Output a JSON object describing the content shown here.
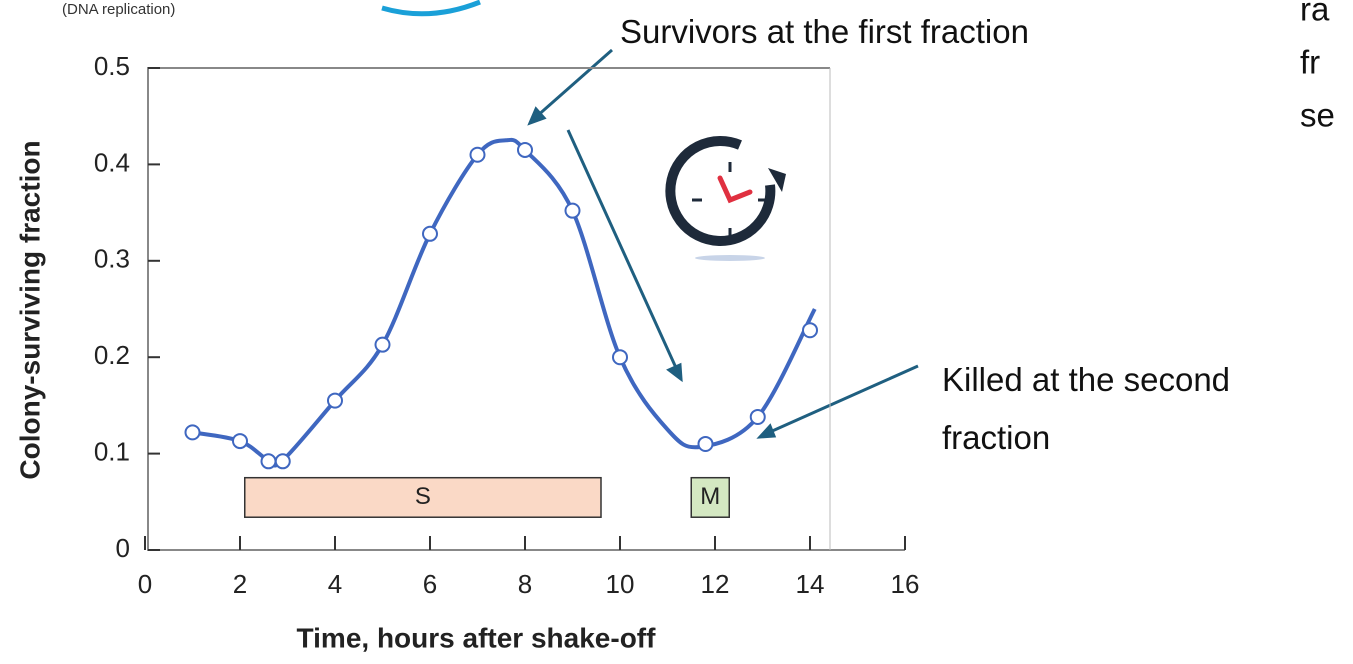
{
  "chart_data": {
    "type": "line",
    "xlabel": "Time, hours after shake-off",
    "ylabel": "Colony-surviving fraction",
    "xlim": [
      0,
      16
    ],
    "xticks": [
      0,
      2,
      4,
      6,
      8,
      10,
      12,
      14,
      16
    ],
    "ylim": [
      0,
      0.5
    ],
    "yticks": [
      0,
      0.1,
      0.2,
      0.3,
      0.4,
      0.5
    ],
    "series": [
      {
        "color": "#3f67c0",
        "smooth": true,
        "x": [
          1,
          2,
          2.6,
          2.9,
          4,
          5,
          6,
          7,
          7.6,
          8,
          9,
          10,
          11,
          11.7,
          12.9,
          14.1
        ],
        "values": [
          0.122,
          0.113,
          0.093,
          0.093,
          0.155,
          0.213,
          0.328,
          0.41,
          0.425,
          0.415,
          0.352,
          0.2,
          0.125,
          0.107,
          0.138,
          0.25
        ]
      },
      {
        "color": "#3f67c0",
        "markers": true,
        "x": [
          1,
          2,
          2.6,
          2.9,
          4,
          5,
          6,
          7,
          8,
          9,
          10,
          11.8,
          12.9,
          14
        ],
        "values": [
          0.122,
          0.113,
          0.092,
          0.092,
          0.155,
          0.213,
          0.328,
          0.41,
          0.415,
          0.352,
          0.2,
          0.11,
          0.138,
          0.228
        ]
      }
    ],
    "phases": [
      {
        "label": "S",
        "start": 2.1,
        "end": 9.6,
        "low": 0.034,
        "high": 0.075,
        "color": "#fad9c6"
      },
      {
        "label": "M",
        "start": 11.5,
        "end": 12.3,
        "low": 0.034,
        "high": 0.075,
        "color": "#d4e8c2"
      }
    ],
    "annotations": [
      "Survivors at the first fraction",
      "Killed at the second fraction"
    ],
    "fragments": [
      "(DNA replication)",
      "ra",
      "fr",
      "se"
    ]
  }
}
